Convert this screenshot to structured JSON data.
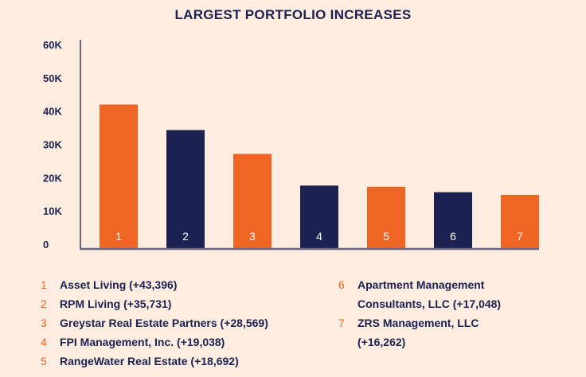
{
  "chart_data": {
    "type": "bar",
    "title": "LARGEST PORTFOLIO INCREASES",
    "xlabel": "",
    "ylabel": "",
    "ylim": [
      0,
      60000
    ],
    "yticks": [
      0,
      10000,
      20000,
      30000,
      40000,
      50000,
      60000
    ],
    "ytick_labels": [
      "0",
      "10K",
      "20K",
      "30K",
      "40K",
      "50K",
      "60K"
    ],
    "categories": [
      "1",
      "2",
      "3",
      "4",
      "5",
      "6",
      "7"
    ],
    "values": [
      43396,
      35731,
      28569,
      19038,
      18692,
      17048,
      16262
    ],
    "bar_colors": [
      "#ef6524",
      "#1b2150",
      "#ef6524",
      "#1b2150",
      "#ef6524",
      "#1b2150",
      "#ef6524"
    ],
    "grid": false,
    "legend_position": "bottom",
    "legend": [
      {
        "num": "1",
        "text": "Asset Living (+43,396)"
      },
      {
        "num": "2",
        "text": "RPM Living (+35,731)"
      },
      {
        "num": "3",
        "text": "Greystar Real Estate Partners (+28,569)"
      },
      {
        "num": "4",
        "text": "FPI Management, Inc. (+19,038)"
      },
      {
        "num": "5",
        "text": "RangeWater Real Estate (+18,692)"
      },
      {
        "num": "6",
        "text": "Apartment Management Consultants, LLC (+17,048)"
      },
      {
        "num": "7",
        "text": "ZRS Management, LLC (+16,262)"
      }
    ]
  },
  "colors": {
    "orange": "#ef6524",
    "navy": "#1b2150",
    "axis": "#6b6580",
    "background": "#fdece0"
  }
}
